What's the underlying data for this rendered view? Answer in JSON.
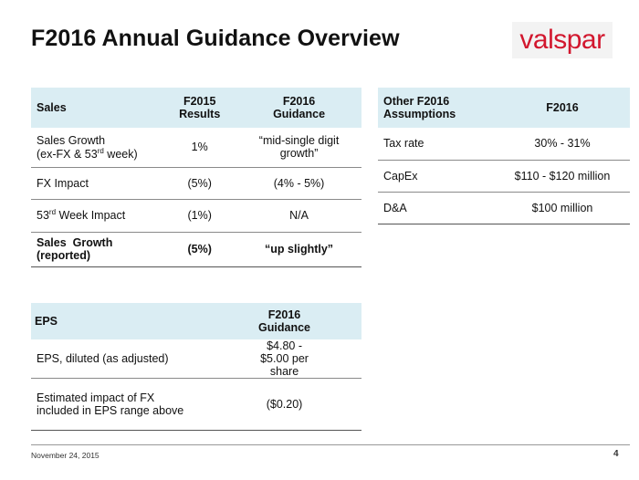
{
  "title": "F2016 Annual Guidance Overview",
  "logo": {
    "text": "valspar",
    "color": "#d2172e"
  },
  "sales_table": {
    "headers": {
      "col1": "Sales",
      "col2": "F2015 Results",
      "col3": "F2016 Guidance"
    },
    "rows": [
      {
        "label": "Sales Growth",
        "label2_pre": "(ex-FX & 53",
        "label2_sup": "rd",
        "label2_post": " week)",
        "f2015": "1%",
        "f2016": "“mid-single digit growth”"
      },
      {
        "label": "FX Impact",
        "f2015": "(5%)",
        "f2016": "(4% - 5%)"
      },
      {
        "label_pre": "53",
        "label_sup": "rd",
        "label_post": " Week Impact",
        "f2015": "(1%)",
        "f2016": "N/A"
      },
      {
        "label": "Sales  Growth (reported)",
        "f2015": "(5%)",
        "f2016": "“up slightly”"
      }
    ]
  },
  "assumptions_table": {
    "headers": {
      "col1": "Other F2016 Assumptions",
      "col2": "F2016"
    },
    "rows": [
      {
        "label": "Tax rate",
        "value": "30% - 31%"
      },
      {
        "label": "CapEx",
        "value": "$110 - $120 million"
      },
      {
        "label": "D&A",
        "value": "$100 million"
      }
    ]
  },
  "eps_table": {
    "headers": {
      "col1": "EPS",
      "col2": "F2016 Guidance"
    },
    "rows": [
      {
        "label": "EPS, diluted (as adjusted)",
        "value": "$4.80 - $5.00 per share"
      },
      {
        "label": "Estimated impact of FX included in EPS range above",
        "value": "($0.20)"
      }
    ]
  },
  "footer": {
    "date": "November 24, 2015",
    "page": "4"
  }
}
